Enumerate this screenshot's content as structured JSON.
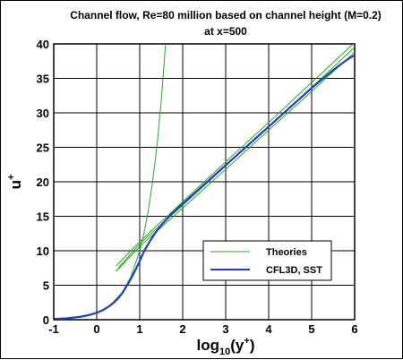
{
  "chart_data": {
    "type": "line",
    "title": "Channel flow, Re=80 million based on channel height (M=0.2)",
    "subtitle": "at x=500",
    "xlabel": "log",
    "xlabel_sub": "10",
    "xlabel_paren_open": "(y",
    "xlabel_sup": "+",
    "xlabel_paren_close": ")",
    "ylabel": "u",
    "ylabel_sup": "+",
    "xlim": [
      -1,
      6
    ],
    "ylim": [
      0,
      40
    ],
    "xticks": [
      -1,
      0,
      1,
      2,
      3,
      4,
      5,
      6
    ],
    "yticks": [
      0,
      5,
      10,
      15,
      20,
      25,
      30,
      35,
      40
    ],
    "grid": true,
    "legend": {
      "placement": "bottom-right",
      "entries": [
        {
          "label": "Theories",
          "color": "#22aa22"
        },
        {
          "label": "CFL3D, SST",
          "color": "#1f3fbf"
        }
      ]
    },
    "series": [
      {
        "name": "Theories",
        "color": "#22aa22",
        "style": "thin",
        "segments": [
          {
            "x": [
              -1.0,
              -0.5,
              0.0,
              0.3,
              0.6,
              0.8,
              1.0,
              1.1,
              1.2,
              1.3,
              1.4,
              1.5,
              1.6
            ],
            "y": [
              0.1,
              0.32,
              1.0,
              2.0,
              4.0,
              6.3,
              10.0,
              12.6,
              15.8,
              20.0,
              25.1,
              31.6,
              39.8
            ]
          },
          {
            "x": [
              0.45,
              1.0,
              2.0,
              3.0,
              4.0,
              5.0,
              6.0
            ],
            "y": [
              7.0,
              10.6,
              16.2,
              21.8,
              27.5,
              33.1,
              38.8
            ]
          },
          {
            "x": [
              0.45,
              1.0,
              2.0,
              3.0,
              4.0,
              5.0,
              6.0
            ],
            "y": [
              7.8,
              11.3,
              17.1,
              22.9,
              28.6,
              34.4,
              40.2
            ]
          },
          {
            "x": [
              0.5,
              1.0,
              2.0,
              3.0,
              4.0,
              5.0,
              6.0
            ],
            "y": [
              7.5,
              11.0,
              16.6,
              22.3,
              28.0,
              33.7,
              39.5
            ]
          }
        ]
      },
      {
        "name": "CFL3D, SST",
        "color": "#1f3fbf",
        "style": "thick",
        "segments": [
          {
            "x": [
              -1.0,
              -0.7,
              -0.4,
              -0.2,
              0.0,
              0.15,
              0.3,
              0.4,
              0.5,
              0.6,
              0.7,
              0.8,
              0.9,
              1.0,
              1.1,
              1.2,
              1.35,
              1.5,
              1.75,
              2.0,
              2.5,
              3.0,
              3.5,
              4.0,
              4.5,
              5.0,
              5.5,
              5.8,
              5.95,
              6.0
            ],
            "y": [
              0.1,
              0.2,
              0.4,
              0.64,
              1.0,
              1.4,
              2.0,
              2.5,
              3.1,
              3.9,
              4.9,
              6.0,
              7.2,
              8.5,
              9.9,
              11.0,
              12.5,
              13.7,
              15.4,
              16.8,
              19.6,
              22.4,
              25.2,
              28.0,
              30.8,
              33.6,
              36.2,
              37.6,
              38.2,
              38.3
            ]
          }
        ]
      }
    ]
  }
}
